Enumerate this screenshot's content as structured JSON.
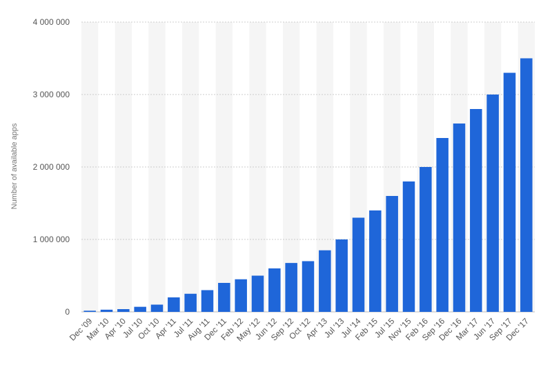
{
  "chart_data": {
    "type": "bar",
    "ylabel": "Number of available apps",
    "xlabel": "",
    "ylim": [
      0,
      4000000
    ],
    "yticks": [
      0,
      1000000,
      2000000,
      3000000,
      4000000
    ],
    "ytick_labels": [
      "0",
      "1 000 000",
      "2 000 000",
      "3 000 000",
      "4 000 000"
    ],
    "grid": true,
    "bar_color": "#1f66d9",
    "categories": [
      "Dec '09",
      "Mar '10",
      "Apr '10",
      "Jul '10",
      "Oct '10",
      "Apr '11",
      "Jul '11",
      "Aug '11",
      "Dec '11",
      "Feb '12",
      "May '12",
      "Jun '12",
      "Sep '12",
      "Oct '12",
      "Apr '13",
      "Jul '13",
      "Jul '14",
      "Feb '15",
      "Jul '15",
      "Nov '15",
      "Feb '16",
      "Sep '16",
      "Dec '16",
      "Mar '17",
      "Jun '17",
      "Sep '17",
      "Dec '17"
    ],
    "values": [
      16000,
      30000,
      38000,
      70000,
      100000,
      200000,
      250000,
      300000,
      400000,
      450000,
      500000,
      600000,
      675000,
      700000,
      850000,
      1000000,
      1300000,
      1400000,
      1600000,
      1800000,
      2000000,
      2400000,
      2600000,
      2800000,
      3000000,
      3300000,
      3500000
    ]
  }
}
